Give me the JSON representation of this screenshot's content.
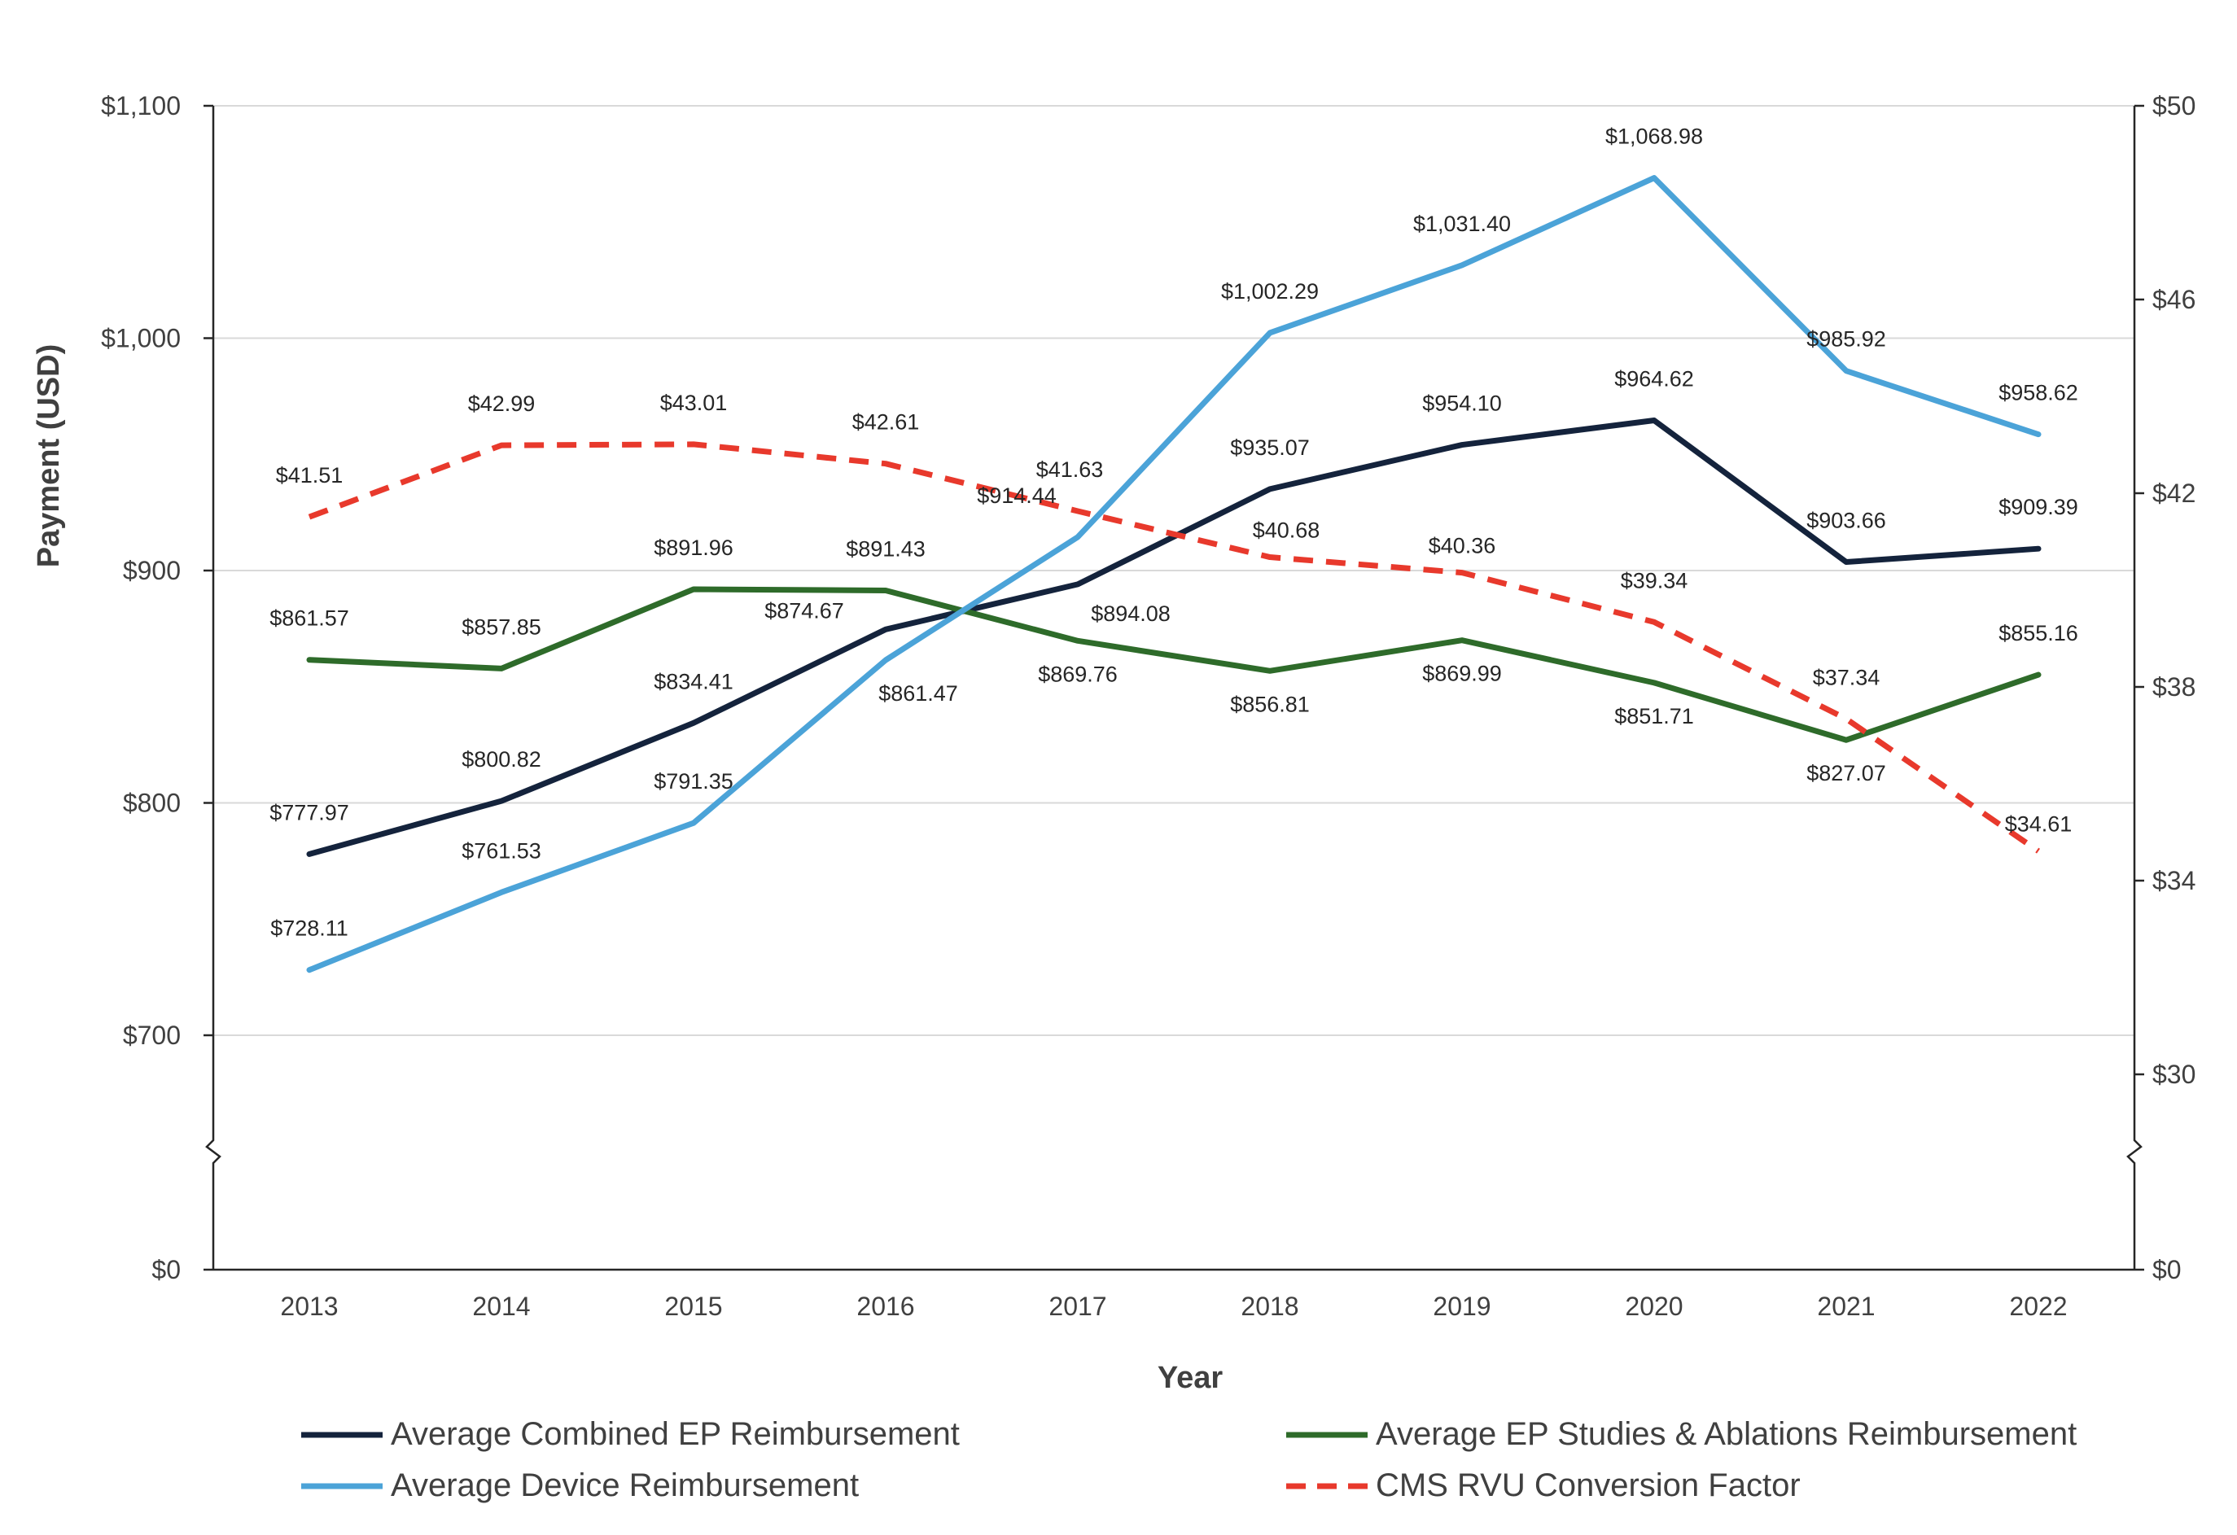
{
  "chart_data": {
    "type": "line",
    "categories": [
      "2013",
      "2014",
      "2015",
      "2016",
      "2017",
      "2018",
      "2019",
      "2020",
      "2021",
      "2022"
    ],
    "xlabel": "Year",
    "ylabel": "Payment (USD)",
    "y_left": {
      "ticks": [
        0,
        700,
        800,
        900,
        1000,
        1100
      ],
      "tick_labels": [
        "$0",
        "$700",
        "$800",
        "$900",
        "$1,000",
        "$1,100"
      ],
      "axis_break": "between $0 and $700"
    },
    "y_right": {
      "ticks": [
        0,
        30,
        34,
        38,
        42,
        46,
        50
      ],
      "tick_labels": [
        "$0",
        "$30",
        "$34",
        "$38",
        "$42",
        "$46",
        "$50"
      ],
      "axis_break": "between $0 and $30"
    },
    "series": [
      {
        "name": "Average Combined EP Reimbursement",
        "axis": "left",
        "color": "#14233c",
        "style": "solid",
        "values": [
          777.97,
          800.82,
          834.41,
          874.67,
          894.08,
          935.07,
          954.1,
          964.62,
          903.66,
          909.39
        ],
        "labels": [
          "$777.97",
          "$800.82",
          "$834.41",
          "$874.67",
          "$894.08",
          "$935.07",
          "$954.10",
          "$964.62",
          "$903.66",
          "$909.39"
        ]
      },
      {
        "name": "Average EP Studies & Ablations Reimbursement",
        "axis": "left",
        "color": "#2e6b2a",
        "style": "solid",
        "values": [
          861.57,
          857.85,
          891.96,
          891.43,
          869.76,
          856.81,
          869.99,
          851.71,
          827.07,
          855.16
        ],
        "labels": [
          "$861.57",
          "$857.85",
          "$891.96",
          "$891.43",
          "$869.76",
          "$856.81",
          "$869.99",
          "$851.71",
          "$827.07",
          "$855.16"
        ]
      },
      {
        "name": "Average Device Reimbursement",
        "axis": "left",
        "color": "#4ba3d8",
        "style": "solid",
        "values": [
          728.11,
          761.53,
          791.35,
          861.47,
          914.44,
          1002.29,
          1031.4,
          1068.98,
          985.92,
          958.62
        ],
        "labels": [
          "$728.11",
          "$761.53",
          "$791.35",
          "$861.47",
          "$914.44",
          "$1,002.29",
          "$1,031.40",
          "$1,068.98",
          "$985.92",
          "$958.62"
        ]
      },
      {
        "name": "CMS RVU Conversion Factor",
        "axis": "right",
        "color": "#e8392c",
        "style": "dashed",
        "values": [
          41.51,
          42.99,
          43.01,
          42.61,
          41.63,
          40.68,
          40.36,
          39.34,
          37.34,
          34.61
        ],
        "labels": [
          "$41.51",
          "$42.99",
          "$43.01",
          "$42.61",
          "$41.63",
          "$40.68",
          "$40.36",
          "$39.34",
          "$37.34",
          "$34.61"
        ]
      }
    ],
    "grid": true,
    "legend": "bottom"
  }
}
